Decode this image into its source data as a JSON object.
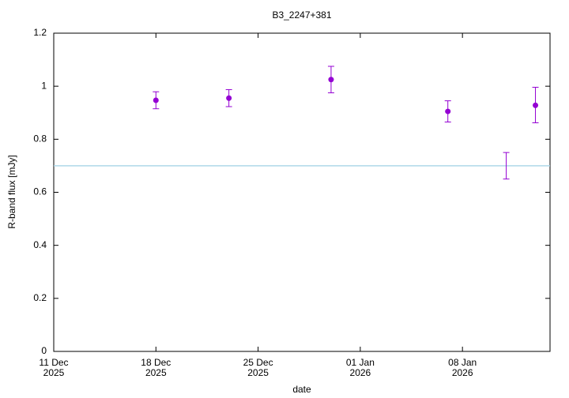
{
  "chart_data": {
    "type": "errorbar",
    "title": "B3_2247+381",
    "x_label": "date",
    "y_label": "R-band flux [mJy]",
    "x": [
      "2025-12-18",
      "2025-12-23",
      "2025-12-30",
      "2026-01-07",
      "2026-01-11",
      "2026-01-13"
    ],
    "series": [
      {
        "color": "#9400d3",
        "values": [
          0.947,
          0.955,
          1.025,
          0.905,
          null,
          0.928
        ],
        "lower": [
          0.915,
          0.923,
          0.975,
          0.865,
          0.65,
          0.862
        ],
        "upper": [
          0.979,
          0.987,
          1.075,
          0.945,
          0.75,
          0.996
        ]
      }
    ],
    "hline": {
      "value": 0.7,
      "color": "#a6d4e6"
    },
    "xlim": [
      "2025-12-11",
      "2026-01-14"
    ],
    "xticks": [
      {
        "value": "2025-12-11",
        "label": [
          "11 Dec",
          "2025"
        ]
      },
      {
        "value": "2025-12-18",
        "label": [
          "18 Dec",
          "2025"
        ]
      },
      {
        "value": "2025-12-25",
        "label": [
          "25 Dec",
          "2025"
        ]
      },
      {
        "value": "2026-01-01",
        "label": [
          "01 Jan",
          "2026"
        ]
      },
      {
        "value": "2026-01-08",
        "label": [
          "08 Jan",
          "2026"
        ]
      }
    ],
    "ylim": [
      0,
      1.2
    ],
    "yticks": [
      0,
      0.2,
      0.4,
      0.6,
      0.8,
      1,
      1.2
    ]
  }
}
